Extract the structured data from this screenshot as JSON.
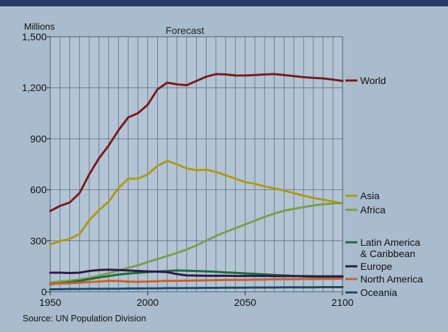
{
  "chart_data": {
    "type": "line",
    "ylabel": "Millions",
    "annotation": "Forecast",
    "source": "Source: UN Population Division",
    "ylim": [
      0,
      1500
    ],
    "xlim": [
      1950,
      2100
    ],
    "yticks": [
      0,
      300,
      600,
      900,
      1200,
      1500
    ],
    "ytick_labels": [
      "0",
      "300",
      "600",
      "900",
      "1,200",
      "1,500"
    ],
    "xticks": [
      1950,
      2000,
      2050,
      2100
    ],
    "xtick_labels": [
      "1950",
      "2000",
      "2050",
      "2100"
    ],
    "grid": true,
    "x": [
      1950,
      1955,
      1960,
      1965,
      1970,
      1975,
      1980,
      1985,
      1990,
      1995,
      2000,
      2005,
      2010,
      2015,
      2020,
      2025,
      2030,
      2035,
      2040,
      2045,
      2050,
      2055,
      2060,
      2065,
      2070,
      2075,
      2080,
      2085,
      2090,
      2095,
      2100
    ],
    "series": [
      {
        "name": "World",
        "color": "#7a1a1a",
        "values": [
          475,
          505,
          525,
          580,
          690,
          785,
          860,
          950,
          1025,
          1050,
          1100,
          1190,
          1230,
          1220,
          1215,
          1240,
          1265,
          1280,
          1278,
          1272,
          1272,
          1275,
          1278,
          1280,
          1275,
          1268,
          1262,
          1258,
          1255,
          1248,
          1240
        ]
      },
      {
        "name": "Asia",
        "color": "#b09a10",
        "values": [
          278,
          298,
          310,
          340,
          420,
          480,
          530,
          610,
          665,
          665,
          690,
          740,
          770,
          750,
          725,
          715,
          718,
          705,
          685,
          665,
          645,
          635,
          620,
          608,
          595,
          580,
          565,
          552,
          542,
          530,
          520
        ]
      },
      {
        "name": "Africa",
        "color": "#7aa04a",
        "values": [
          55,
          60,
          66,
          72,
          82,
          95,
          108,
          125,
          140,
          155,
          175,
          192,
          210,
          228,
          248,
          272,
          300,
          328,
          352,
          374,
          395,
          418,
          440,
          460,
          476,
          488,
          498,
          507,
          514,
          519,
          522
        ]
      },
      {
        "name": "Latin America & Caribbean",
        "color": "#1f6a3c",
        "values": [
          45,
          50,
          56,
          64,
          74,
          84,
          92,
          101,
          107,
          111,
          115,
          119,
          122,
          125,
          124,
          122,
          120,
          117,
          114,
          111,
          108,
          105,
          102,
          99,
          96,
          93,
          90,
          88,
          86,
          85,
          84
        ]
      },
      {
        "name": "Europe",
        "color": "#2d1a46",
        "values": [
          112,
          112,
          110,
          112,
          122,
          128,
          130,
          128,
          125,
          122,
          120,
          118,
          115,
          104,
          96,
          95,
          94,
          94,
          94,
          93,
          93,
          93,
          93,
          92,
          92,
          92,
          92,
          91,
          91,
          91,
          91
        ]
      },
      {
        "name": "North America",
        "color": "#c8602a",
        "values": [
          48,
          48,
          50,
          53,
          57,
          60,
          64,
          63,
          60,
          58,
          60,
          62,
          64,
          64,
          65,
          66,
          67,
          68,
          69,
          70,
          70,
          71,
          72,
          73,
          74,
          74,
          75,
          75,
          76,
          76,
          77
        ]
      },
      {
        "name": "Oceania",
        "color": "#1c4a6a",
        "values": [
          14,
          15,
          16,
          16,
          17,
          17,
          18,
          18,
          19,
          19,
          20,
          20,
          21,
          21,
          22,
          22,
          23,
          23,
          24,
          24,
          24,
          25,
          25,
          25,
          26,
          26,
          26,
          26,
          27,
          27,
          27
        ]
      }
    ],
    "legend": [
      {
        "lines": [
          "World"
        ]
      },
      {
        "lines": [
          "Asia"
        ]
      },
      {
        "lines": [
          "Africa"
        ]
      },
      {
        "lines": [
          "Latin America",
          "& Caribbean"
        ]
      },
      {
        "lines": [
          "Europe"
        ]
      },
      {
        "lines": [
          "North America"
        ]
      },
      {
        "lines": [
          "Oceania"
        ]
      }
    ]
  }
}
